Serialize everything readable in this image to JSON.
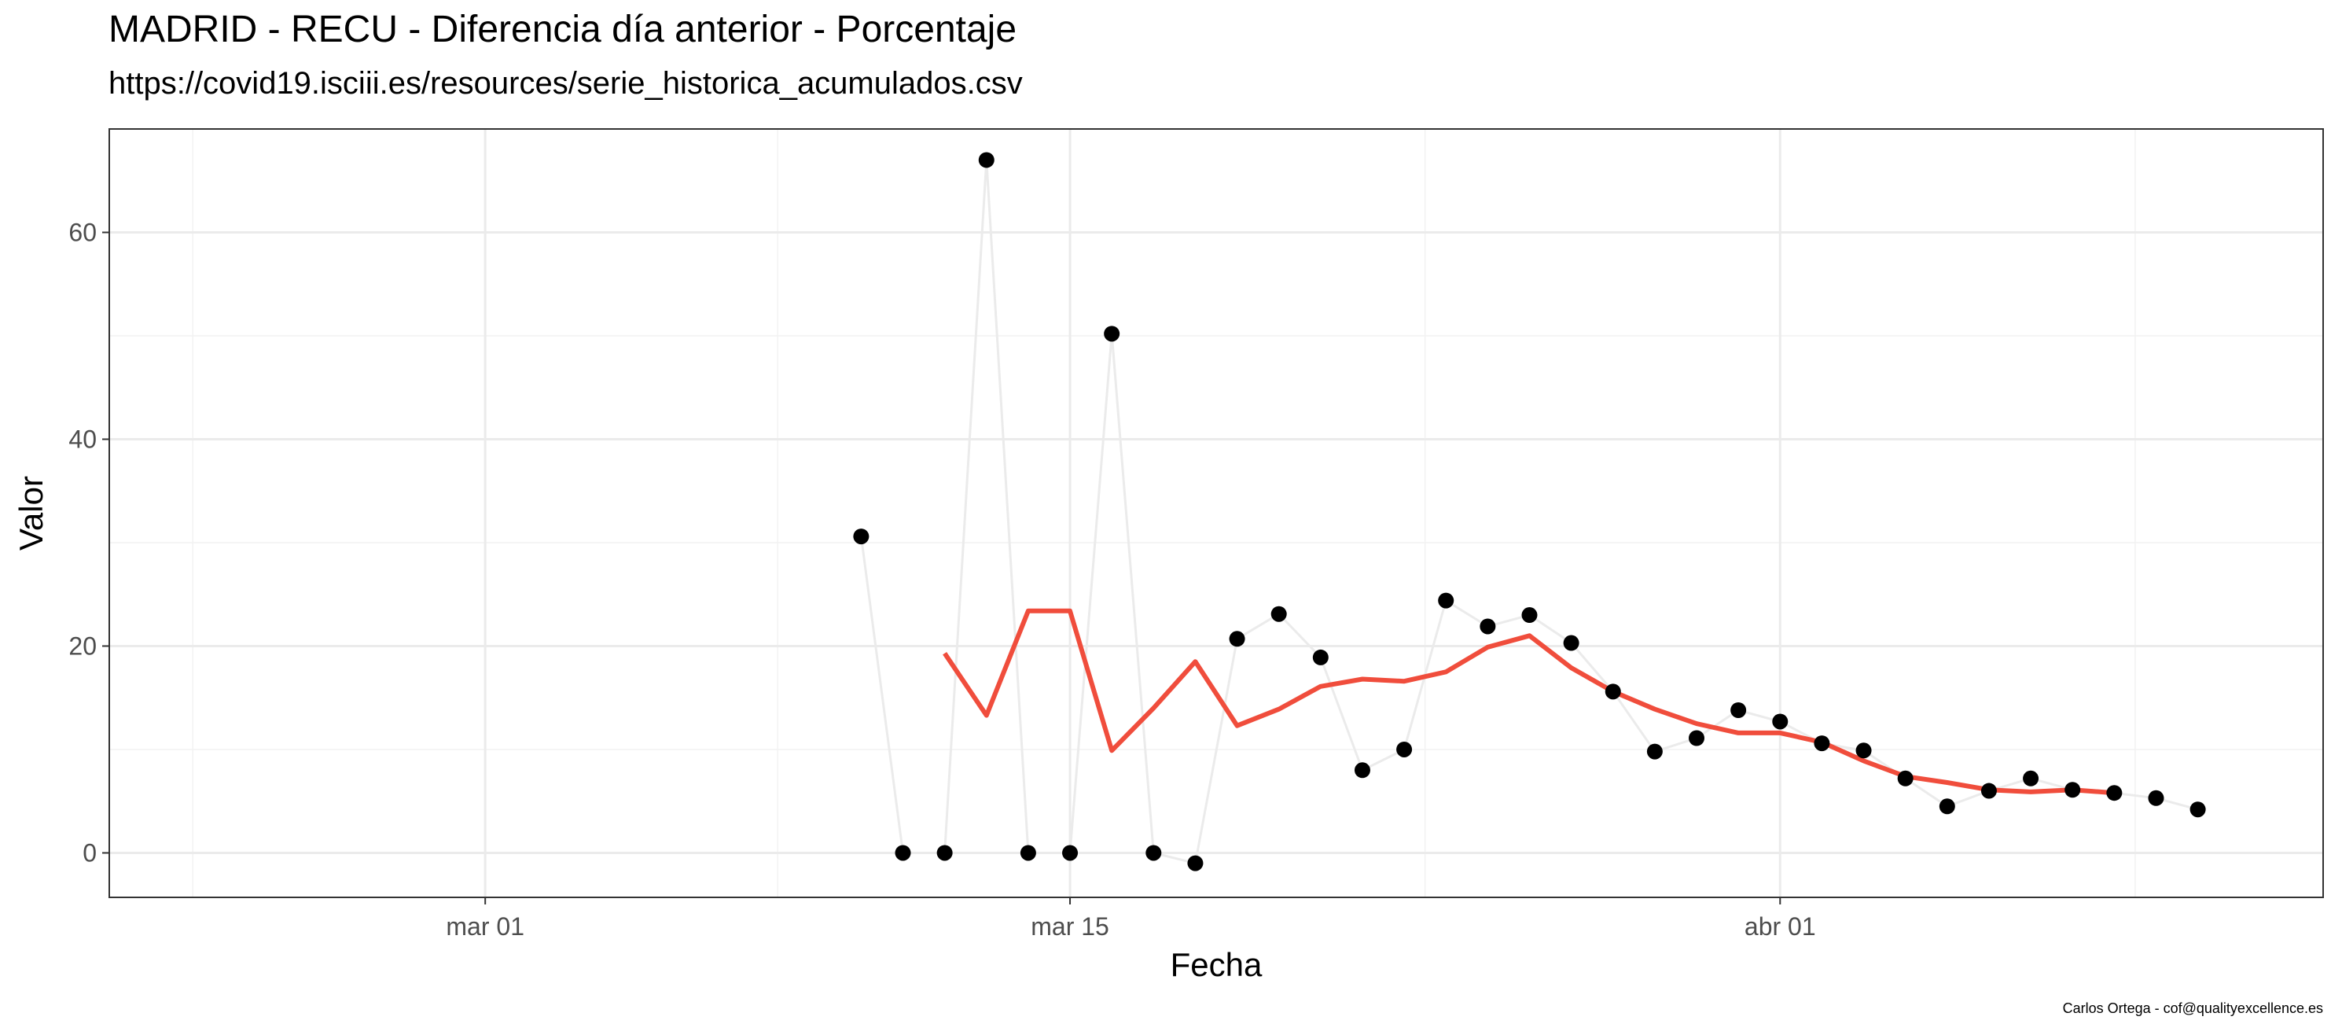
{
  "chart_data": {
    "type": "line",
    "title": "MADRID - RECU - Diferencia día anterior - Porcentaje",
    "subtitle": "https://covid19.isciii.es/resources/serie_historica_acumulados.csv",
    "caption": "Carlos Ortega - cof@qualityexcellence.es",
    "xlabel": "Fecha",
    "ylabel": "Valor",
    "x_ticks": [
      {
        "date": "2020-03-01",
        "label": "mar 01"
      },
      {
        "date": "2020-03-15",
        "label": "mar 15"
      },
      {
        "date": "2020-04-01",
        "label": "abr 01"
      }
    ],
    "y_ticks": [
      0,
      20,
      40,
      60
    ],
    "xlim": [
      "2020-02-21",
      "2020-04-14"
    ],
    "ylim": [
      -4.3,
      70.0
    ],
    "grid": true,
    "series": [
      {
        "style": "points-with-line",
        "point_color": "#000000",
        "line_color": "#ebebeb",
        "points": [
          {
            "date": "2020-03-10",
            "value": 30.6
          },
          {
            "date": "2020-03-11",
            "value": 0.0
          },
          {
            "date": "2020-03-12",
            "value": 0.0
          },
          {
            "date": "2020-03-13",
            "value": 67.0
          },
          {
            "date": "2020-03-14",
            "value": 0.0
          },
          {
            "date": "2020-03-15",
            "value": 0.0
          },
          {
            "date": "2020-03-16",
            "value": 50.2
          },
          {
            "date": "2020-03-17",
            "value": 0.0
          },
          {
            "date": "2020-03-18",
            "value": -1.0
          },
          {
            "date": "2020-03-19",
            "value": 20.7
          },
          {
            "date": "2020-03-20",
            "value": 23.1
          },
          {
            "date": "2020-03-21",
            "value": 18.9
          },
          {
            "date": "2020-03-22",
            "value": 8.0
          },
          {
            "date": "2020-03-23",
            "value": 10.0
          },
          {
            "date": "2020-03-24",
            "value": 24.4
          },
          {
            "date": "2020-03-25",
            "value": 21.9
          },
          {
            "date": "2020-03-26",
            "value": 23.0
          },
          {
            "date": "2020-03-27",
            "value": 20.3
          },
          {
            "date": "2020-03-28",
            "value": 15.6
          },
          {
            "date": "2020-03-29",
            "value": 9.8
          },
          {
            "date": "2020-03-30",
            "value": 11.1
          },
          {
            "date": "2020-03-31",
            "value": 13.8
          },
          {
            "date": "2020-04-01",
            "value": 12.7
          },
          {
            "date": "2020-04-02",
            "value": 10.6
          },
          {
            "date": "2020-04-03",
            "value": 9.9
          },
          {
            "date": "2020-04-04",
            "value": 7.2
          },
          {
            "date": "2020-04-05",
            "value": 4.5
          },
          {
            "date": "2020-04-06",
            "value": 6.0
          },
          {
            "date": "2020-04-07",
            "value": 7.2
          },
          {
            "date": "2020-04-08",
            "value": 6.1
          },
          {
            "date": "2020-04-09",
            "value": 5.8
          },
          {
            "date": "2020-04-10",
            "value": 5.3
          },
          {
            "date": "2020-04-11",
            "value": 4.2
          }
        ]
      },
      {
        "style": "line",
        "line_color": "#f04d3c",
        "points": [
          {
            "date": "2020-03-12",
            "value": 19.3
          },
          {
            "date": "2020-03-13",
            "value": 13.3
          },
          {
            "date": "2020-03-14",
            "value": 23.4
          },
          {
            "date": "2020-03-15",
            "value": 23.4
          },
          {
            "date": "2020-03-16",
            "value": 9.9
          },
          {
            "date": "2020-03-17",
            "value": 14.0
          },
          {
            "date": "2020-03-18",
            "value": 18.5
          },
          {
            "date": "2020-03-19",
            "value": 12.3
          },
          {
            "date": "2020-03-20",
            "value": 13.9
          },
          {
            "date": "2020-03-21",
            "value": 16.1
          },
          {
            "date": "2020-03-22",
            "value": 16.8
          },
          {
            "date": "2020-03-23",
            "value": 16.6
          },
          {
            "date": "2020-03-24",
            "value": 17.5
          },
          {
            "date": "2020-03-25",
            "value": 19.9
          },
          {
            "date": "2020-03-26",
            "value": 21.0
          },
          {
            "date": "2020-03-27",
            "value": 17.9
          },
          {
            "date": "2020-03-28",
            "value": 15.6
          },
          {
            "date": "2020-03-29",
            "value": 13.9
          },
          {
            "date": "2020-03-30",
            "value": 12.5
          },
          {
            "date": "2020-03-31",
            "value": 11.6
          },
          {
            "date": "2020-04-01",
            "value": 11.6
          },
          {
            "date": "2020-04-02",
            "value": 10.7
          },
          {
            "date": "2020-04-03",
            "value": 8.9
          },
          {
            "date": "2020-04-04",
            "value": 7.4
          },
          {
            "date": "2020-04-05",
            "value": 6.8
          },
          {
            "date": "2020-04-06",
            "value": 6.1
          },
          {
            "date": "2020-04-07",
            "value": 5.9
          },
          {
            "date": "2020-04-08",
            "value": 6.1
          },
          {
            "date": "2020-04-09",
            "value": 5.8
          }
        ]
      }
    ],
    "colors": {
      "panel_border": "#333333",
      "grid_major": "#ebebeb",
      "grid_minor": "#f2f2f2",
      "tick_text": "#4d4d4d",
      "background": "#ffffff"
    }
  }
}
